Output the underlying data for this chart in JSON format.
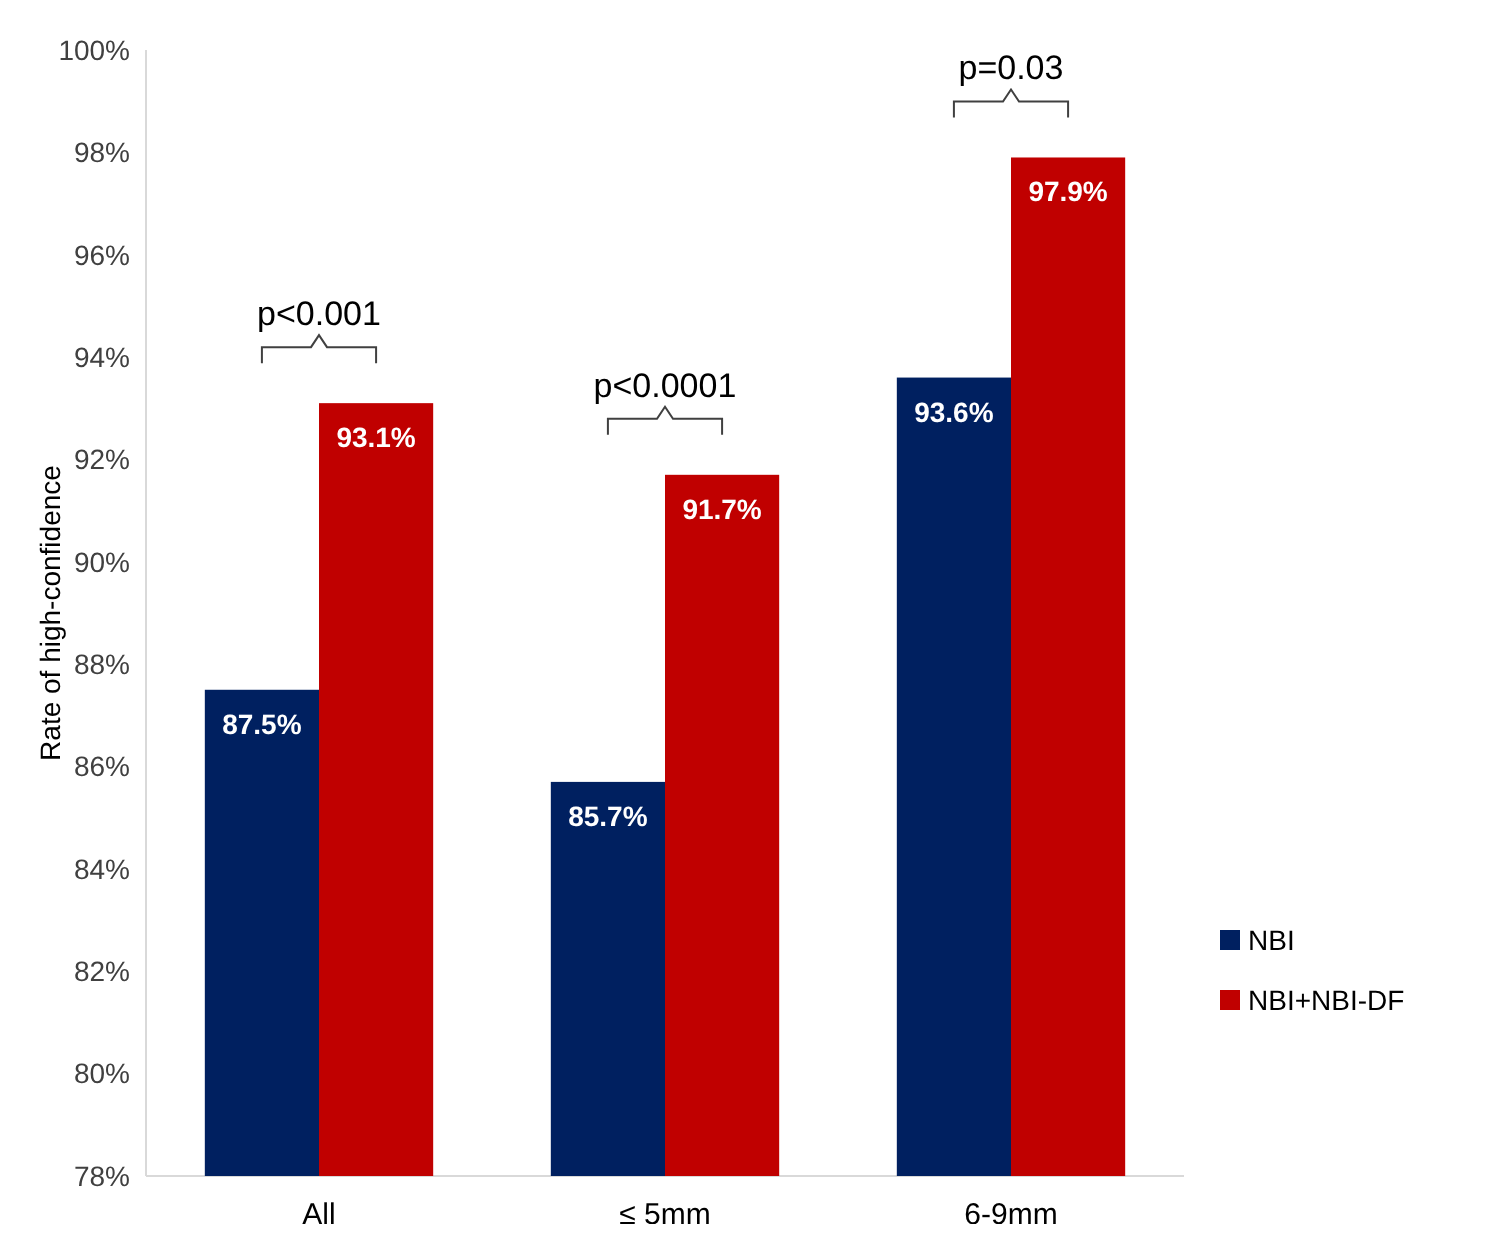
{
  "chart_data": {
    "type": "bar",
    "ylabel": "Rate of high-confidence",
    "categories": [
      "All",
      "≤ 5mm",
      "6-9mm"
    ],
    "series": [
      {
        "name": "NBI",
        "color": "#002060",
        "values": [
          87.5,
          85.7,
          93.6
        ]
      },
      {
        "name": "NBI+NBI-DF",
        "color": "#c00000",
        "values": [
          93.1,
          91.7,
          97.9
        ]
      }
    ],
    "ylim": [
      78,
      100
    ],
    "yticks": [
      {
        "value": 78,
        "label": "78%"
      },
      {
        "value": 80,
        "label": "80%"
      },
      {
        "value": 82,
        "label": "82%"
      },
      {
        "value": 84,
        "label": "84%"
      },
      {
        "value": 86,
        "label": "86%"
      },
      {
        "value": 88,
        "label": "88%"
      },
      {
        "value": 90,
        "label": "90%"
      },
      {
        "value": 92,
        "label": "92%"
      },
      {
        "value": 94,
        "label": "94%"
      },
      {
        "value": 96,
        "label": "96%"
      },
      {
        "value": 98,
        "label": "98%"
      },
      {
        "value": 100,
        "label": "100%"
      }
    ],
    "value_labels": [
      [
        "87.5%",
        "85.7%",
        "93.6%"
      ],
      [
        "93.1%",
        "91.7%",
        "97.9%"
      ]
    ],
    "annotations": [
      "p<0.001",
      "p<0.0001",
      "p=0.03"
    ],
    "legend": "right",
    "grid": false
  }
}
